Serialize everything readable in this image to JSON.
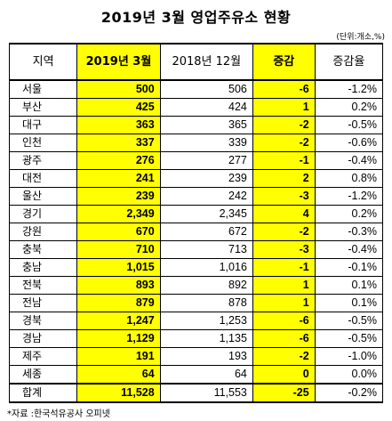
{
  "title": "2019년 3월 영업주유소 현황",
  "unit": "(단위:개소,%)",
  "headers": {
    "region": "지역",
    "current": "2019년 3월",
    "previous": "2018년 12월",
    "change": "증감",
    "change_rate": "증감율"
  },
  "rows": [
    {
      "region": "서울",
      "current": "500",
      "previous": "506",
      "change": "-6",
      "change_rate": "-1.2%"
    },
    {
      "region": "부산",
      "current": "425",
      "previous": "424",
      "change": "1",
      "change_rate": "0.2%"
    },
    {
      "region": "대구",
      "current": "363",
      "previous": "365",
      "change": "-2",
      "change_rate": "-0.5%"
    },
    {
      "region": "인천",
      "current": "337",
      "previous": "339",
      "change": "-2",
      "change_rate": "-0.6%"
    },
    {
      "region": "광주",
      "current": "276",
      "previous": "277",
      "change": "-1",
      "change_rate": "-0.4%"
    },
    {
      "region": "대전",
      "current": "241",
      "previous": "239",
      "change": "2",
      "change_rate": "0.8%"
    },
    {
      "region": "울산",
      "current": "239",
      "previous": "242",
      "change": "-3",
      "change_rate": "-1.2%"
    },
    {
      "region": "경기",
      "current": "2,349",
      "previous": "2,345",
      "change": "4",
      "change_rate": "0.2%"
    },
    {
      "region": "강원",
      "current": "670",
      "previous": "672",
      "change": "-2",
      "change_rate": "-0.3%"
    },
    {
      "region": "충북",
      "current": "710",
      "previous": "713",
      "change": "-3",
      "change_rate": "-0.4%"
    },
    {
      "region": "충남",
      "current": "1,015",
      "previous": "1,016",
      "change": "-1",
      "change_rate": "-0.1%"
    },
    {
      "region": "전북",
      "current": "893",
      "previous": "892",
      "change": "1",
      "change_rate": "0.1%"
    },
    {
      "region": "전남",
      "current": "879",
      "previous": "878",
      "change": "1",
      "change_rate": "0.1%"
    },
    {
      "region": "경북",
      "current": "1,247",
      "previous": "1,253",
      "change": "-6",
      "change_rate": "-0.5%"
    },
    {
      "region": "경남",
      "current": "1,129",
      "previous": "1,135",
      "change": "-6",
      "change_rate": "-0.5%"
    },
    {
      "region": "제주",
      "current": "191",
      "previous": "193",
      "change": "-2",
      "change_rate": "-1.0%"
    },
    {
      "region": "세종",
      "current": "64",
      "previous": "64",
      "change": "0",
      "change_rate": "0.0%"
    }
  ],
  "total": {
    "region": "합계",
    "current": "11,528",
    "previous": "11,553",
    "change": "-25",
    "change_rate": "-0.2%"
  },
  "source": "*자료 :한국석유공사 오피넷",
  "colors": {
    "highlight": "#ffff00",
    "border": "#000000"
  }
}
